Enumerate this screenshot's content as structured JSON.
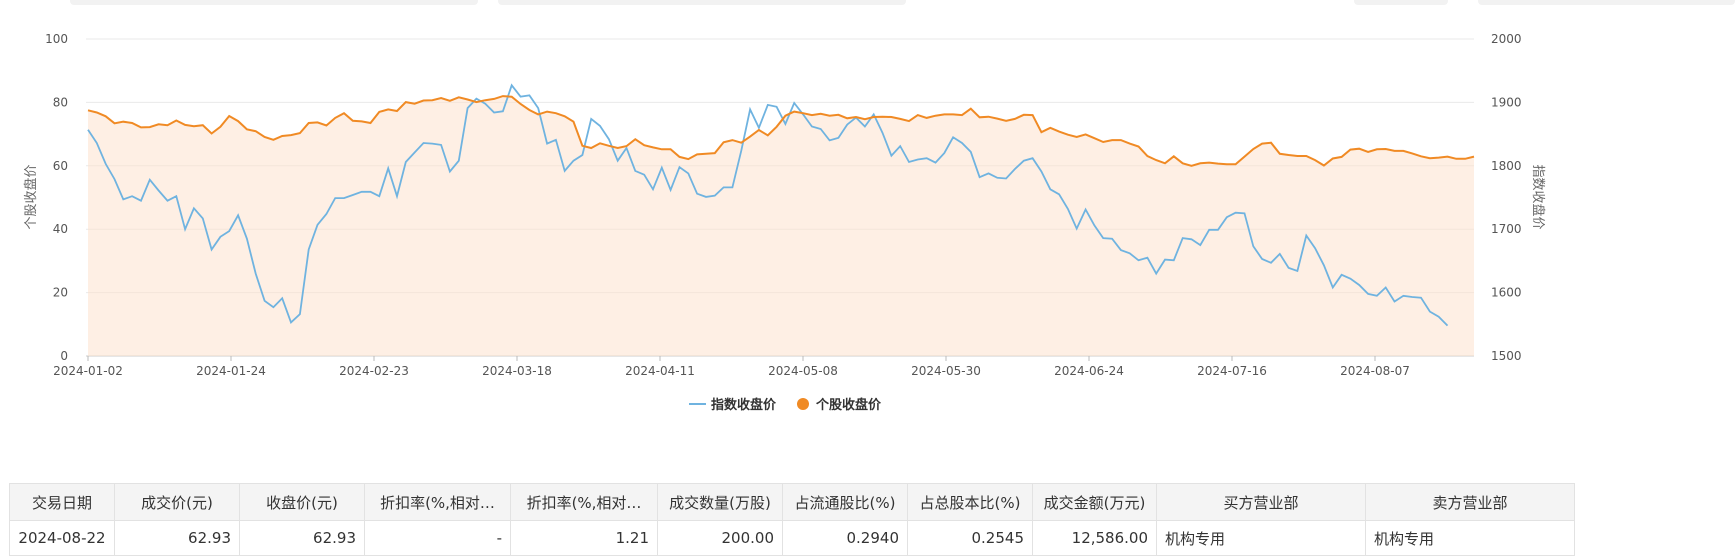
{
  "chart_data": {
    "type": "line",
    "title": "",
    "x_tick_labels": [
      "2024-01-02",
      "2024-01-24",
      "2024-02-23",
      "2024-03-18",
      "2024-04-11",
      "2024-05-08",
      "2024-05-30",
      "2024-06-24",
      "2024-07-16",
      "2024-08-07"
    ],
    "left_axis": {
      "label": "个股收盘价",
      "min": 0,
      "max": 100,
      "ticks": [
        0,
        20,
        40,
        60,
        80,
        100
      ]
    },
    "right_axis": {
      "label": "指数收盘价",
      "min": 1500,
      "max": 2000,
      "ticks": [
        1500,
        1600,
        1700,
        1800,
        1900,
        2000
      ]
    },
    "grid": true,
    "legend_position": "bottom-center",
    "series": [
      {
        "name": "指数收盘价",
        "axis": "right",
        "color": "#6fb3e0",
        "values": [
          1857,
          1836,
          1803,
          1779,
          1747,
          1752,
          1745,
          1778,
          1761,
          1745,
          1752,
          1700,
          1733,
          1717,
          1668,
          1688,
          1697,
          1722,
          1685,
          1630,
          1587,
          1577,
          1591,
          1553,
          1566,
          1668,
          1707,
          1724,
          1749,
          1749,
          1754,
          1759,
          1759,
          1752,
          1796,
          1752,
          1806,
          1821,
          1836,
          1835,
          1833,
          1791,
          1808,
          1891,
          1906,
          1898,
          1884,
          1886,
          1927,
          1909,
          1911,
          1891,
          1835,
          1841,
          1792,
          1808,
          1817,
          1874,
          1863,
          1842,
          1808,
          1828,
          1792,
          1786,
          1763,
          1797,
          1762,
          1798,
          1788,
          1756,
          1751,
          1753,
          1766,
          1766,
          1824,
          1889,
          1860,
          1896,
          1893,
          1866,
          1899,
          1881,
          1862,
          1858,
          1840,
          1844,
          1865,
          1876,
          1862,
          1881,
          1852,
          1816,
          1831,
          1806,
          1810,
          1812,
          1805,
          1820,
          1845,
          1836,
          1822,
          1782,
          1788,
          1781,
          1780,
          1795,
          1808,
          1812,
          1791,
          1763,
          1755,
          1732,
          1701,
          1731,
          1706,
          1686,
          1685,
          1667,
          1662,
          1651,
          1655,
          1630,
          1652,
          1651,
          1686,
          1684,
          1675,
          1699,
          1699,
          1719,
          1726,
          1725,
          1673,
          1653,
          1647,
          1661,
          1639,
          1634,
          1690,
          1670,
          1643,
          1608,
          1628,
          1622,
          1612,
          1598,
          1595,
          1608,
          1586,
          1595,
          1593,
          1592,
          1570,
          1562,
          1548
        ]
      },
      {
        "name": "个股收盘价",
        "axis": "left",
        "color": "#f08a24",
        "values": [
          77.5,
          76.8,
          75.6,
          73.4,
          73.9,
          73.5,
          72.1,
          72.2,
          73.1,
          72.8,
          74.3,
          72.9,
          72.5,
          72.8,
          70.2,
          72.3,
          75.7,
          74.1,
          71.5,
          70.9,
          69.1,
          68.2,
          69.4,
          69.7,
          70.3,
          73.5,
          73.7,
          72.7,
          75.1,
          76.6,
          74.2,
          74.0,
          73.5,
          77.0,
          77.8,
          77.3,
          80.1,
          79.6,
          80.6,
          80.7,
          81.4,
          80.5,
          81.6,
          80.9,
          80.1,
          80.7,
          81.1,
          82.0,
          81.8,
          79.5,
          77.6,
          76.2,
          77.1,
          76.6,
          75.6,
          73.9,
          66.3,
          65.6,
          67.1,
          66.3,
          65.6,
          66.2,
          68.4,
          66.5,
          65.8,
          65.2,
          65.2,
          62.8,
          62.1,
          63.6,
          63.8,
          64.0,
          67.4,
          68.1,
          67.3,
          69.2,
          71.3,
          69.6,
          72.3,
          75.8,
          77.1,
          76.6,
          76.0,
          76.4,
          75.8,
          76.1,
          75.0,
          75.4,
          74.7,
          75.4,
          75.5,
          75.4,
          74.8,
          74.1,
          76.0,
          75.1,
          75.8,
          76.2,
          76.2,
          76.0,
          78.0,
          75.3,
          75.5,
          74.9,
          74.2,
          74.8,
          76.1,
          76.0,
          70.6,
          72.0,
          70.8,
          69.8,
          69.1,
          69.9,
          68.7,
          67.5,
          68.1,
          68.1,
          67.0,
          66.1,
          63.1,
          61.8,
          60.8,
          63.0,
          60.8,
          60.0,
          60.8,
          61.0,
          60.7,
          60.5,
          60.5,
          62.9,
          65.3,
          67.0,
          67.3,
          63.8,
          63.4,
          63.1,
          63.1,
          61.8,
          60.1,
          62.3,
          62.8,
          65.1,
          65.4,
          64.4,
          65.2,
          65.3,
          64.7,
          64.7,
          63.9,
          63.0,
          62.4,
          62.6,
          62.9,
          62.2,
          62.2,
          62.9
        ]
      }
    ]
  },
  "table": {
    "headers": [
      "交易日期",
      "成交价(元)",
      "收盘价(元)",
      "折扣率(%,相对…",
      "折扣率(%,相对…",
      "成交数量(万股)",
      "占流通股比(%)",
      "占总股本比(%)",
      "成交金额(万元)",
      "买方营业部",
      "卖方营业部"
    ],
    "rows": [
      [
        "2024-08-22",
        "62.93",
        "62.93",
        "-",
        "1.21",
        "200.00",
        "0.2940",
        "0.2545",
        "12,586.00",
        "机构专用",
        "机构专用"
      ]
    ]
  }
}
